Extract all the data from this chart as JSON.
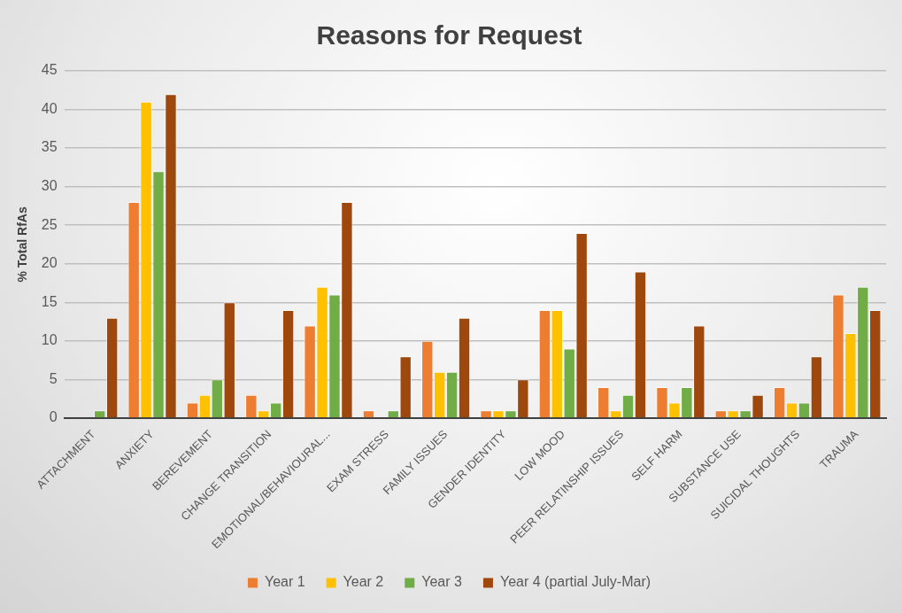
{
  "chart_data": {
    "type": "bar",
    "title": "Reasons for Request",
    "ylabel": "% Total RfAs",
    "categories": [
      "ATTACHMENT",
      "ANXIETY",
      "BEREVEMENT",
      "CHANGE TRANSITION",
      "EMOTIONAL/BEHAVIOURAL...",
      "EXAM STRESS",
      "FAMILY ISSUES",
      "GENDER IDENTITY",
      "LOW MOOD",
      "PEER RELATINSHIP ISSUES",
      "SELF HARM",
      "SUBSTANCE USE",
      "SUICIDAL THOUGHTS",
      "TRAUMA"
    ],
    "series": [
      {
        "name": "Year 1",
        "color": "#ed7d31",
        "values": [
          0,
          28,
          2,
          3,
          12,
          1,
          10,
          1,
          14,
          4,
          4,
          1,
          4,
          16
        ]
      },
      {
        "name": "Year 2",
        "color": "#ffc000",
        "values": [
          0,
          41,
          3,
          1,
          17,
          0,
          6,
          1,
          14,
          1,
          2,
          1,
          2,
          11
        ]
      },
      {
        "name": "Year 3",
        "color": "#70ad47",
        "values": [
          1,
          32,
          5,
          2,
          16,
          1,
          6,
          1,
          9,
          3,
          4,
          1,
          2,
          17
        ]
      },
      {
        "name": "Year 4 (partial July-Mar)",
        "color": "#9e480e",
        "values": [
          13,
          42,
          15,
          14,
          28,
          8,
          13,
          5,
          24,
          19,
          12,
          3,
          8,
          14
        ]
      }
    ],
    "ylim": [
      0,
      45
    ],
    "yticks": [
      0,
      5,
      10,
      15,
      20,
      25,
      30,
      35,
      40,
      45
    ],
    "grid": "y",
    "legend": "bottom"
  }
}
